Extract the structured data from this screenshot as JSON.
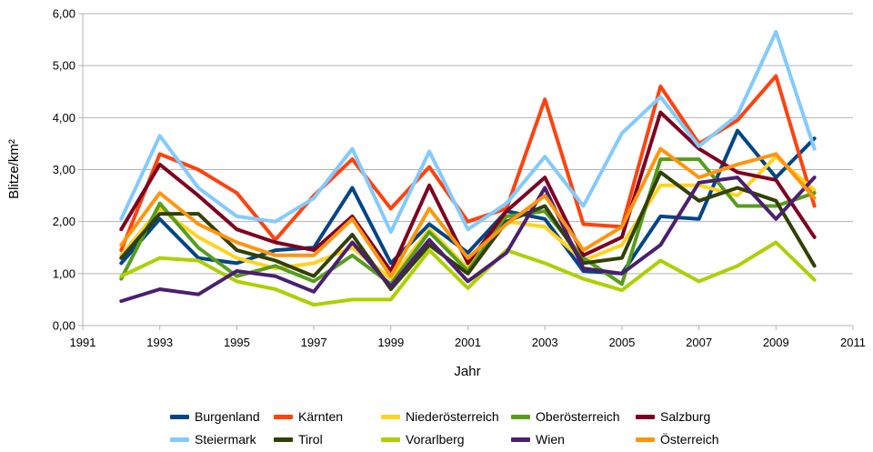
{
  "chart_data": {
    "type": "line",
    "title": "",
    "xlabel": "Jahr",
    "ylabel": "Blitze/km²",
    "xlim": [
      1991,
      2011
    ],
    "ylim": [
      0,
      6
    ],
    "x_ticks": [
      1991,
      1993,
      1995,
      1997,
      1999,
      2001,
      2003,
      2005,
      2007,
      2009,
      2011
    ],
    "y_tick_labels": [
      "0,00",
      "1,00",
      "2,00",
      "3,00",
      "4,00",
      "5,00",
      "6,00"
    ],
    "grid": "horizontal",
    "legend_position": "bottom",
    "x": [
      1992,
      1993,
      1994,
      1995,
      1996,
      1997,
      1998,
      1999,
      2000,
      2001,
      2002,
      2003,
      2004,
      2005,
      2006,
      2007,
      2008,
      2009,
      2010
    ],
    "series": [
      {
        "name": "Burgenland",
        "color": "#004586",
        "values": [
          1.2,
          2.05,
          1.3,
          1.2,
          1.45,
          1.5,
          2.65,
          1.2,
          1.95,
          1.4,
          2.2,
          2.05,
          1.05,
          1.0,
          2.1,
          2.05,
          3.75,
          2.85,
          3.6
        ]
      },
      {
        "name": "Kärnten",
        "color": "#FF420E",
        "values": [
          1.45,
          3.3,
          3.0,
          2.55,
          1.65,
          2.5,
          3.2,
          2.25,
          3.05,
          2.0,
          2.25,
          4.35,
          1.95,
          1.9,
          4.6,
          3.5,
          3.95,
          4.8,
          2.3
        ]
      },
      {
        "name": "Niederösterreich",
        "color": "#FFD320",
        "values": [
          1.35,
          2.25,
          1.7,
          1.3,
          1.1,
          1.2,
          1.5,
          0.9,
          1.85,
          1.1,
          2.0,
          1.9,
          1.25,
          1.55,
          2.7,
          2.7,
          2.5,
          3.25,
          2.6
        ]
      },
      {
        "name": "Oberösterreich",
        "color": "#579D1C",
        "values": [
          0.9,
          2.35,
          1.5,
          0.95,
          1.15,
          0.85,
          1.35,
          0.8,
          1.8,
          1.05,
          2.1,
          2.2,
          1.3,
          0.8,
          3.2,
          3.2,
          2.3,
          2.3,
          2.55
        ]
      },
      {
        "name": "Salzburg",
        "color": "#7E0021",
        "values": [
          1.85,
          3.1,
          2.5,
          1.85,
          1.6,
          1.45,
          2.1,
          1.05,
          2.7,
          1.2,
          2.2,
          2.85,
          1.35,
          1.7,
          4.1,
          3.4,
          2.95,
          2.8,
          1.7
        ]
      },
      {
        "name": "Steiermark",
        "color": "#83CAFF",
        "values": [
          2.05,
          3.65,
          2.65,
          2.1,
          2.0,
          2.45,
          3.4,
          1.8,
          3.35,
          1.85,
          2.35,
          3.25,
          2.3,
          3.7,
          4.4,
          3.45,
          4.05,
          5.65,
          3.4
        ]
      },
      {
        "name": "Tirol",
        "color": "#314004",
        "values": [
          1.3,
          2.15,
          2.15,
          1.45,
          1.25,
          0.95,
          1.75,
          0.7,
          1.55,
          1.0,
          2.0,
          2.3,
          1.2,
          1.3,
          2.95,
          2.4,
          2.65,
          2.4,
          1.15
        ]
      },
      {
        "name": "Vorarlberg",
        "color": "#AECF00",
        "values": [
          0.95,
          1.3,
          1.25,
          0.85,
          0.7,
          0.4,
          0.5,
          0.5,
          1.45,
          0.72,
          1.45,
          1.2,
          0.9,
          0.68,
          1.25,
          0.85,
          1.15,
          1.6,
          0.88
        ]
      },
      {
        "name": "Wien",
        "color": "#4B1F6F",
        "values": [
          0.47,
          0.7,
          0.6,
          1.05,
          0.95,
          0.65,
          1.6,
          0.75,
          1.65,
          0.85,
          1.4,
          2.65,
          1.1,
          1.0,
          1.55,
          2.75,
          2.85,
          2.05,
          2.85
        ]
      },
      {
        "name": "Österreich",
        "color": "#FF950E",
        "values": [
          1.55,
          2.55,
          1.95,
          1.6,
          1.35,
          1.35,
          2.05,
          0.95,
          2.25,
          1.3,
          1.95,
          2.5,
          1.45,
          1.9,
          3.4,
          2.85,
          3.1,
          3.3,
          2.45
        ]
      }
    ],
    "style": {
      "grid_color": "#B3B3B3",
      "axis_color": "#B3B3B3",
      "line_width": 4
    }
  }
}
